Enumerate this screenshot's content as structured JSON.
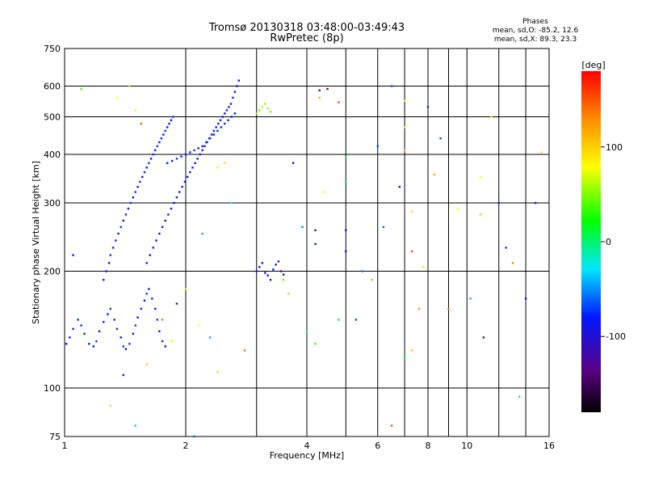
{
  "chart_data": {
    "type": "scatter",
    "title": "Tromsø 20130318 03:48:00-03:49:43",
    "subtitle": "RwPretec (8p)",
    "xlabel": "Frequency [MHz]",
    "ylabel": "Stationary phase Virtual Height [km]",
    "x_scale": "log",
    "y_scale": "log",
    "xlim": [
      1,
      16
    ],
    "ylim": [
      75,
      750
    ],
    "x_ticks": [
      1,
      2,
      4,
      6,
      8,
      10,
      16
    ],
    "x_tick_labels": [
      "1",
      "2",
      "4",
      "6",
      "8",
      "10",
      "16"
    ],
    "x_minor_ticks": [
      3,
      5,
      7,
      9,
      12,
      14
    ],
    "y_ticks": [
      75,
      100,
      200,
      300,
      400,
      500,
      600,
      750
    ],
    "y_tick_labels": [
      "75",
      "100",
      "200",
      "300",
      "400",
      "500",
      "600",
      "750"
    ],
    "grid": true,
    "stats": {
      "heading": "Phases",
      "line1": "mean, sd,O: -85.2, 12.6",
      "line2": "mean, sd,X: 89.3, 23.3"
    },
    "colorbar": {
      "label": "[deg]",
      "range": [
        -180,
        180
      ],
      "ticks": [
        100,
        0,
        -100
      ],
      "tick_labels": [
        "100",
        "0",
        "-100"
      ],
      "colormap": "rainbow (black-purple-blue-cyan-green-yellow-red)"
    },
    "color_encodes": "phase [deg]",
    "clusters": [
      {
        "points": [
          [
            1.01,
            130,
            -110
          ],
          [
            1.03,
            135,
            -110
          ],
          [
            1.05,
            142,
            -105
          ],
          [
            1.08,
            150,
            -110
          ],
          [
            1.1,
            145,
            -100
          ],
          [
            1.12,
            138,
            -110
          ],
          [
            1.15,
            130,
            -105
          ],
          [
            1.18,
            128,
            -110
          ],
          [
            1.2,
            132,
            -100
          ],
          [
            1.22,
            140,
            -110
          ],
          [
            1.25,
            148,
            -105
          ],
          [
            1.28,
            155,
            -110
          ],
          [
            1.3,
            160,
            -100
          ],
          [
            1.33,
            150,
            -110
          ],
          [
            1.35,
            142,
            -105
          ],
          [
            1.38,
            135,
            -110
          ],
          [
            1.4,
            128,
            -100
          ],
          [
            1.42,
            126,
            -110
          ],
          [
            1.45,
            130,
            -105
          ],
          [
            1.48,
            138,
            -110
          ],
          [
            1.5,
            145,
            -100
          ],
          [
            1.52,
            152,
            -110
          ],
          [
            1.55,
            160,
            -105
          ],
          [
            1.58,
            168,
            -110
          ],
          [
            1.6,
            175,
            -100
          ],
          [
            1.62,
            180,
            -110
          ],
          [
            1.65,
            170,
            -105
          ],
          [
            1.68,
            160,
            -110
          ],
          [
            1.7,
            150,
            -100
          ],
          [
            1.72,
            140,
            -110
          ],
          [
            1.75,
            132,
            -105
          ],
          [
            1.78,
            128,
            -110
          ]
        ]
      },
      {
        "points": [
          [
            1.25,
            190,
            -110
          ],
          [
            1.27,
            200,
            -105
          ],
          [
            1.29,
            210,
            -110
          ],
          [
            1.3,
            220,
            -100
          ],
          [
            1.32,
            230,
            -110
          ],
          [
            1.34,
            240,
            -105
          ],
          [
            1.36,
            250,
            -110
          ],
          [
            1.38,
            260,
            -100
          ],
          [
            1.4,
            270,
            -110
          ],
          [
            1.42,
            280,
            -105
          ],
          [
            1.44,
            290,
            -110
          ],
          [
            1.46,
            300,
            -100
          ],
          [
            1.48,
            310,
            -110
          ],
          [
            1.5,
            320,
            -105
          ],
          [
            1.52,
            330,
            -110
          ],
          [
            1.54,
            340,
            -100
          ],
          [
            1.56,
            350,
            -110
          ],
          [
            1.58,
            360,
            -105
          ],
          [
            1.6,
            370,
            -110
          ],
          [
            1.62,
            380,
            -100
          ],
          [
            1.64,
            390,
            -110
          ],
          [
            1.66,
            400,
            -105
          ],
          [
            1.68,
            410,
            -110
          ],
          [
            1.7,
            420,
            -100
          ],
          [
            1.72,
            430,
            -110
          ],
          [
            1.74,
            440,
            -105
          ],
          [
            1.76,
            450,
            -110
          ],
          [
            1.78,
            460,
            -100
          ],
          [
            1.8,
            470,
            -110
          ],
          [
            1.82,
            480,
            -105
          ],
          [
            1.84,
            490,
            -110
          ],
          [
            1.86,
            500,
            -100
          ]
        ]
      },
      {
        "points": [
          [
            1.6,
            210,
            -115
          ],
          [
            1.63,
            220,
            -110
          ],
          [
            1.66,
            230,
            -120
          ],
          [
            1.69,
            240,
            -110
          ],
          [
            1.72,
            250,
            -115
          ],
          [
            1.75,
            260,
            -110
          ],
          [
            1.78,
            270,
            -120
          ],
          [
            1.81,
            280,
            -110
          ],
          [
            1.84,
            290,
            -115
          ],
          [
            1.87,
            300,
            -110
          ],
          [
            1.9,
            310,
            -120
          ],
          [
            1.93,
            320,
            -110
          ],
          [
            1.96,
            330,
            -115
          ],
          [
            1.99,
            340,
            -110
          ],
          [
            2.02,
            350,
            -120
          ],
          [
            2.05,
            360,
            -110
          ],
          [
            2.08,
            370,
            -115
          ],
          [
            2.11,
            380,
            -110
          ],
          [
            2.14,
            390,
            -120
          ],
          [
            2.17,
            400,
            -110
          ],
          [
            2.2,
            410,
            -115
          ],
          [
            2.23,
            420,
            -110
          ],
          [
            2.26,
            430,
            -120
          ],
          [
            2.29,
            440,
            -110
          ],
          [
            2.32,
            450,
            -115
          ],
          [
            2.35,
            460,
            -110
          ],
          [
            2.38,
            470,
            -120
          ],
          [
            2.41,
            480,
            -110
          ],
          [
            2.44,
            490,
            -115
          ],
          [
            2.47,
            500,
            -110
          ],
          [
            2.5,
            510,
            -120
          ],
          [
            2.53,
            520,
            -110
          ],
          [
            2.56,
            530,
            -115
          ],
          [
            2.59,
            540,
            -110
          ],
          [
            2.62,
            560,
            -120
          ],
          [
            2.65,
            580,
            -110
          ],
          [
            2.68,
            600,
            -115
          ],
          [
            2.71,
            620,
            -110
          ]
        ]
      },
      {
        "points": [
          [
            1.8,
            380,
            -105
          ],
          [
            1.85,
            385,
            -110
          ],
          [
            1.9,
            390,
            -100
          ],
          [
            1.95,
            395,
            -110
          ],
          [
            2.0,
            400,
            -105
          ],
          [
            2.05,
            405,
            -110
          ],
          [
            2.1,
            410,
            -100
          ],
          [
            2.15,
            415,
            -110
          ],
          [
            2.2,
            420,
            -105
          ],
          [
            2.25,
            430,
            -110
          ],
          [
            2.3,
            440,
            -100
          ],
          [
            2.35,
            450,
            -110
          ],
          [
            2.4,
            460,
            -105
          ],
          [
            2.45,
            470,
            -110
          ],
          [
            2.5,
            480,
            -100
          ],
          [
            2.55,
            490,
            -110
          ],
          [
            2.6,
            500,
            -105
          ],
          [
            2.65,
            510,
            -110
          ]
        ]
      },
      {
        "points": [
          [
            3.0,
            200,
            -120
          ],
          [
            3.05,
            205,
            -140
          ],
          [
            3.1,
            210,
            -110
          ],
          [
            3.15,
            198,
            -130
          ],
          [
            3.2,
            195,
            -120
          ],
          [
            3.25,
            190,
            -140
          ],
          [
            3.3,
            202,
            -110
          ],
          [
            3.35,
            208,
            -130
          ],
          [
            3.4,
            212,
            -120
          ],
          [
            3.45,
            200,
            -140
          ],
          [
            3.5,
            196,
            -110
          ]
        ]
      },
      {
        "points": [
          [
            3.0,
            510,
            60
          ],
          [
            3.05,
            520,
            40
          ],
          [
            3.1,
            530,
            70
          ],
          [
            3.15,
            540,
            50
          ],
          [
            3.2,
            525,
            60
          ],
          [
            3.25,
            515,
            40
          ]
        ]
      }
    ],
    "scattered_points": [
      [
        1.1,
        590,
        30
      ],
      [
        1.35,
        560,
        100
      ],
      [
        1.45,
        600,
        60
      ],
      [
        1.5,
        520,
        90
      ],
      [
        1.55,
        480,
        150
      ],
      [
        2.2,
        250,
        -60
      ],
      [
        2.4,
        370,
        80
      ],
      [
        2.6,
        300,
        -40
      ],
      [
        3.7,
        380,
        -120
      ],
      [
        4.3,
        560,
        130
      ],
      [
        4.3,
        585,
        -110
      ],
      [
        4.5,
        590,
        -150
      ],
      [
        4.8,
        545,
        160
      ],
      [
        5.0,
        395,
        -10
      ],
      [
        5.0,
        340,
        -20
      ],
      [
        5.0,
        255,
        -110
      ],
      [
        5.0,
        225,
        -120
      ],
      [
        4.2,
        255,
        -130
      ],
      [
        4.2,
        235,
        -110
      ],
      [
        6.5,
        600,
        -90
      ],
      [
        7.0,
        550,
        90
      ],
      [
        7.0,
        470,
        110
      ],
      [
        7.0,
        410,
        120
      ],
      [
        7.3,
        285,
        110
      ],
      [
        7.3,
        225,
        160
      ],
      [
        7.6,
        160,
        140
      ],
      [
        7.3,
        125,
        120
      ],
      [
        7.0,
        120,
        -10
      ],
      [
        6.5,
        80,
        160
      ],
      [
        8.0,
        530,
        -100
      ],
      [
        8.3,
        355,
        130
      ],
      [
        9.0,
        160,
        150
      ],
      [
        10.8,
        350,
        100
      ],
      [
        10.8,
        280,
        120
      ],
      [
        11.0,
        135,
        -140
      ],
      [
        12.5,
        230,
        -100
      ],
      [
        13.5,
        95,
        -20
      ],
      [
        15.3,
        405,
        110
      ],
      [
        14.8,
        300,
        -110
      ],
      [
        1.05,
        220,
        -110
      ],
      [
        1.3,
        90,
        70
      ],
      [
        1.5,
        80,
        -50
      ],
      [
        2.1,
        75,
        -50
      ],
      [
        2.5,
        380,
        110
      ],
      [
        3.5,
        190,
        40
      ],
      [
        4.0,
        140,
        -30
      ],
      [
        4.2,
        130,
        20
      ],
      [
        4.8,
        150,
        -10
      ],
      [
        5.5,
        200,
        -80
      ],
      [
        6.0,
        420,
        -90
      ],
      [
        2.3,
        135,
        -60
      ],
      [
        2.4,
        110,
        60
      ],
      [
        2.8,
        125,
        150
      ],
      [
        1.85,
        132,
        80
      ],
      [
        2.15,
        145,
        100
      ],
      [
        1.6,
        115,
        120
      ],
      [
        1.4,
        108,
        -110
      ],
      [
        1.75,
        150,
        150
      ],
      [
        1.9,
        165,
        -120
      ],
      [
        2.0,
        180,
        80
      ],
      [
        3.6,
        175,
        60
      ],
      [
        3.9,
        260,
        -70
      ],
      [
        4.4,
        320,
        90
      ],
      [
        5.3,
        150,
        -100
      ],
      [
        5.8,
        190,
        130
      ],
      [
        6.2,
        260,
        -80
      ],
      [
        6.8,
        330,
        -110
      ],
      [
        7.8,
        205,
        70
      ],
      [
        8.6,
        440,
        -90
      ],
      [
        9.5,
        290,
        100
      ],
      [
        10.2,
        170,
        -60
      ],
      [
        11.5,
        500,
        110
      ],
      [
        12.0,
        300,
        -100
      ],
      [
        13.0,
        210,
        140
      ],
      [
        14.0,
        170,
        -110
      ]
    ]
  }
}
